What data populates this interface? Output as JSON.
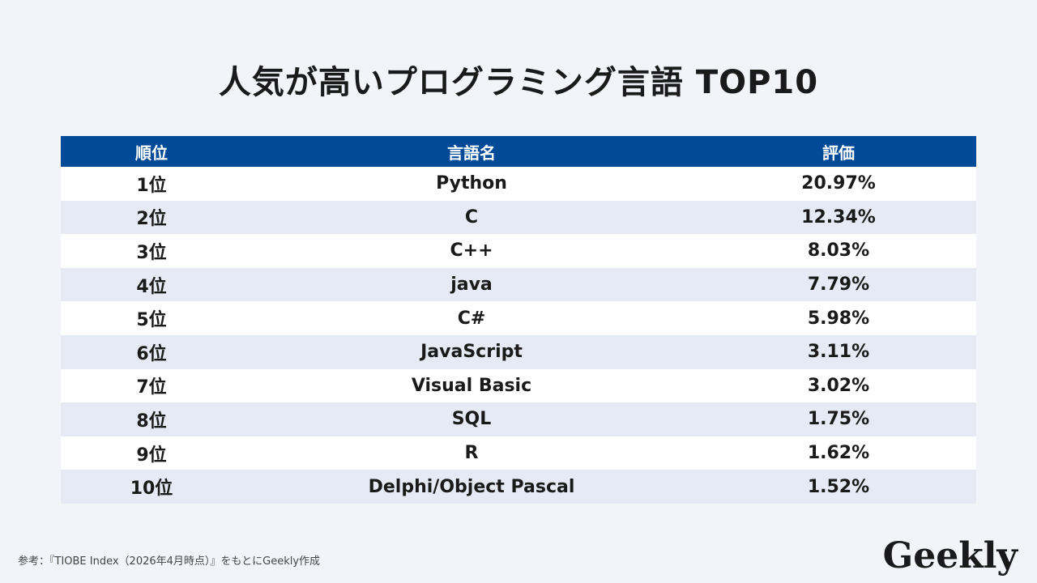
{
  "title": "人気が高いプログラミング言語 TOP10",
  "table": {
    "headers": {
      "rank": "順位",
      "language": "言語名",
      "score": "評価"
    },
    "rows": [
      {
        "rank": "1位",
        "language": "Python",
        "score": "20.97%"
      },
      {
        "rank": "2位",
        "language": "C",
        "score": "12.34%"
      },
      {
        "rank": "3位",
        "language": "C++",
        "score": "8.03%"
      },
      {
        "rank": "4位",
        "language": "java",
        "score": "7.79%"
      },
      {
        "rank": "5位",
        "language": "C#",
        "score": "5.98%"
      },
      {
        "rank": "6位",
        "language": "JavaScript",
        "score": "3.11%"
      },
      {
        "rank": "7位",
        "language": "Visual Basic",
        "score": "3.02%"
      },
      {
        "rank": "8位",
        "language": "SQL",
        "score": "1.75%"
      },
      {
        "rank": "9位",
        "language": "R",
        "score": "1.62%"
      },
      {
        "rank": "10位",
        "language": "Delphi/Object Pascal",
        "score": "1.52%"
      }
    ]
  },
  "source": "参考：『TIOBE Index（2026年4月時点）』をもとにGeekly作成",
  "logo": "Geekly",
  "colors": {
    "header_bg": "#004a98",
    "row_alt_bg": "#e6eaf4",
    "page_bg": "#f2f4f9"
  }
}
